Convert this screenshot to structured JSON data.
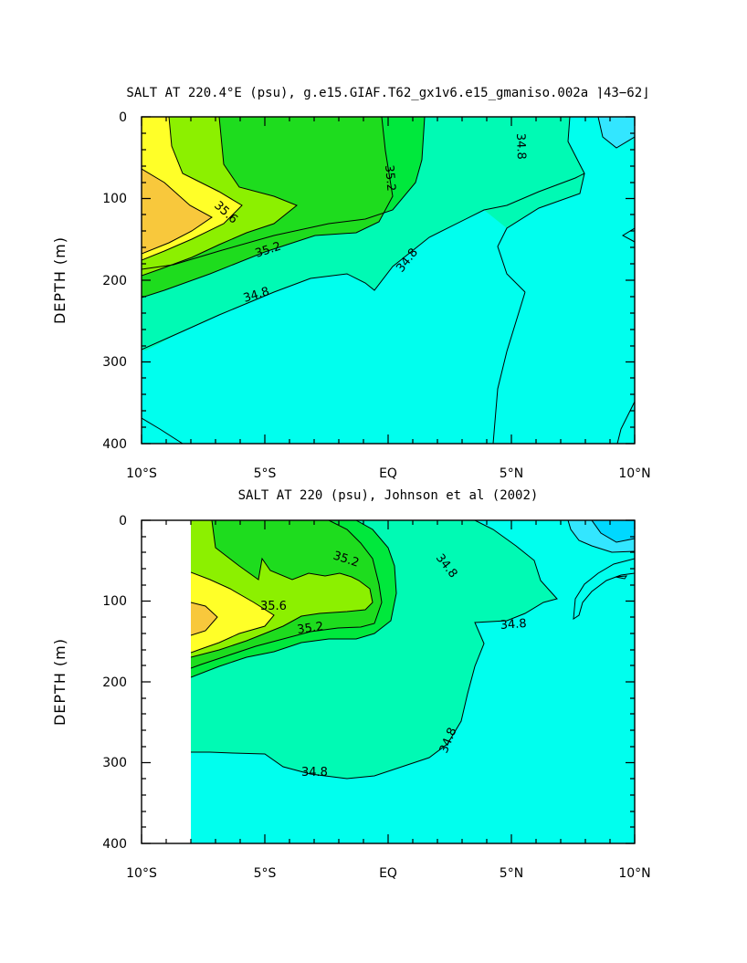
{
  "chart_data": [
    {
      "type": "contour",
      "title": "SALT AT 220.4°E (psu), g.e15.GIAF.T62_gx1v6.e15_gmaniso.002a ⌉43−62⌋",
      "xlabel": "",
      "ylabel": "DEPTH (m)",
      "x_tick_labels": [
        "10°S",
        "5°S",
        "EQ",
        "5°N",
        "10°N"
      ],
      "y_tick_labels": [
        "0",
        "100",
        "200",
        "300",
        "400"
      ],
      "xlim": [
        -10,
        10
      ],
      "ylim": [
        0,
        400
      ],
      "y_inverted": true,
      "contour_interval": 0.2,
      "contour_labels": [
        "35.6",
        "35.2",
        "34.8",
        "35.2",
        "34.8",
        "34.8"
      ],
      "max_salinity_core": {
        "lat": -9.5,
        "depth": 120,
        "value": 35.8
      },
      "fill_colors": {
        "34.4": "#33e6ff",
        "34.6": "#00ffee",
        "34.8": "#00fab4",
        "35.0": "#00e83c",
        "35.2": "#1edc1e",
        "35.4": "#8cf000",
        "35.6": "#ffff28",
        "35.8": "#f8c83c"
      }
    },
    {
      "type": "contour",
      "title": "SALT AT 220 (psu), Johnson et al (2002)",
      "xlabel": "",
      "ylabel": "DEPTH (m)",
      "x_tick_labels": [
        "10°S",
        "5°S",
        "EQ",
        "5°N",
        "10°N"
      ],
      "y_tick_labels": [
        "0",
        "100",
        "200",
        "300",
        "400"
      ],
      "xlim": [
        -10,
        10
      ],
      "ylim": [
        0,
        400
      ],
      "y_inverted": true,
      "data_extent_lat": [
        -8,
        10
      ],
      "contour_interval": 0.2,
      "contour_labels": [
        "35.2",
        "34.8",
        "35.6",
        "35.2",
        "34.8",
        "34.8",
        "34.8"
      ],
      "max_salinity_core": {
        "lat": -7.3,
        "depth": 130,
        "value": 35.8
      },
      "fill_colors": {
        "34.4": "#33e6ff",
        "34.6": "#00ffee",
        "34.8": "#00fab4",
        "35.0": "#00e83c",
        "35.2": "#1edc1e",
        "35.4": "#8cf000",
        "35.6": "#ffff28",
        "35.8": "#f8c83c"
      }
    }
  ]
}
